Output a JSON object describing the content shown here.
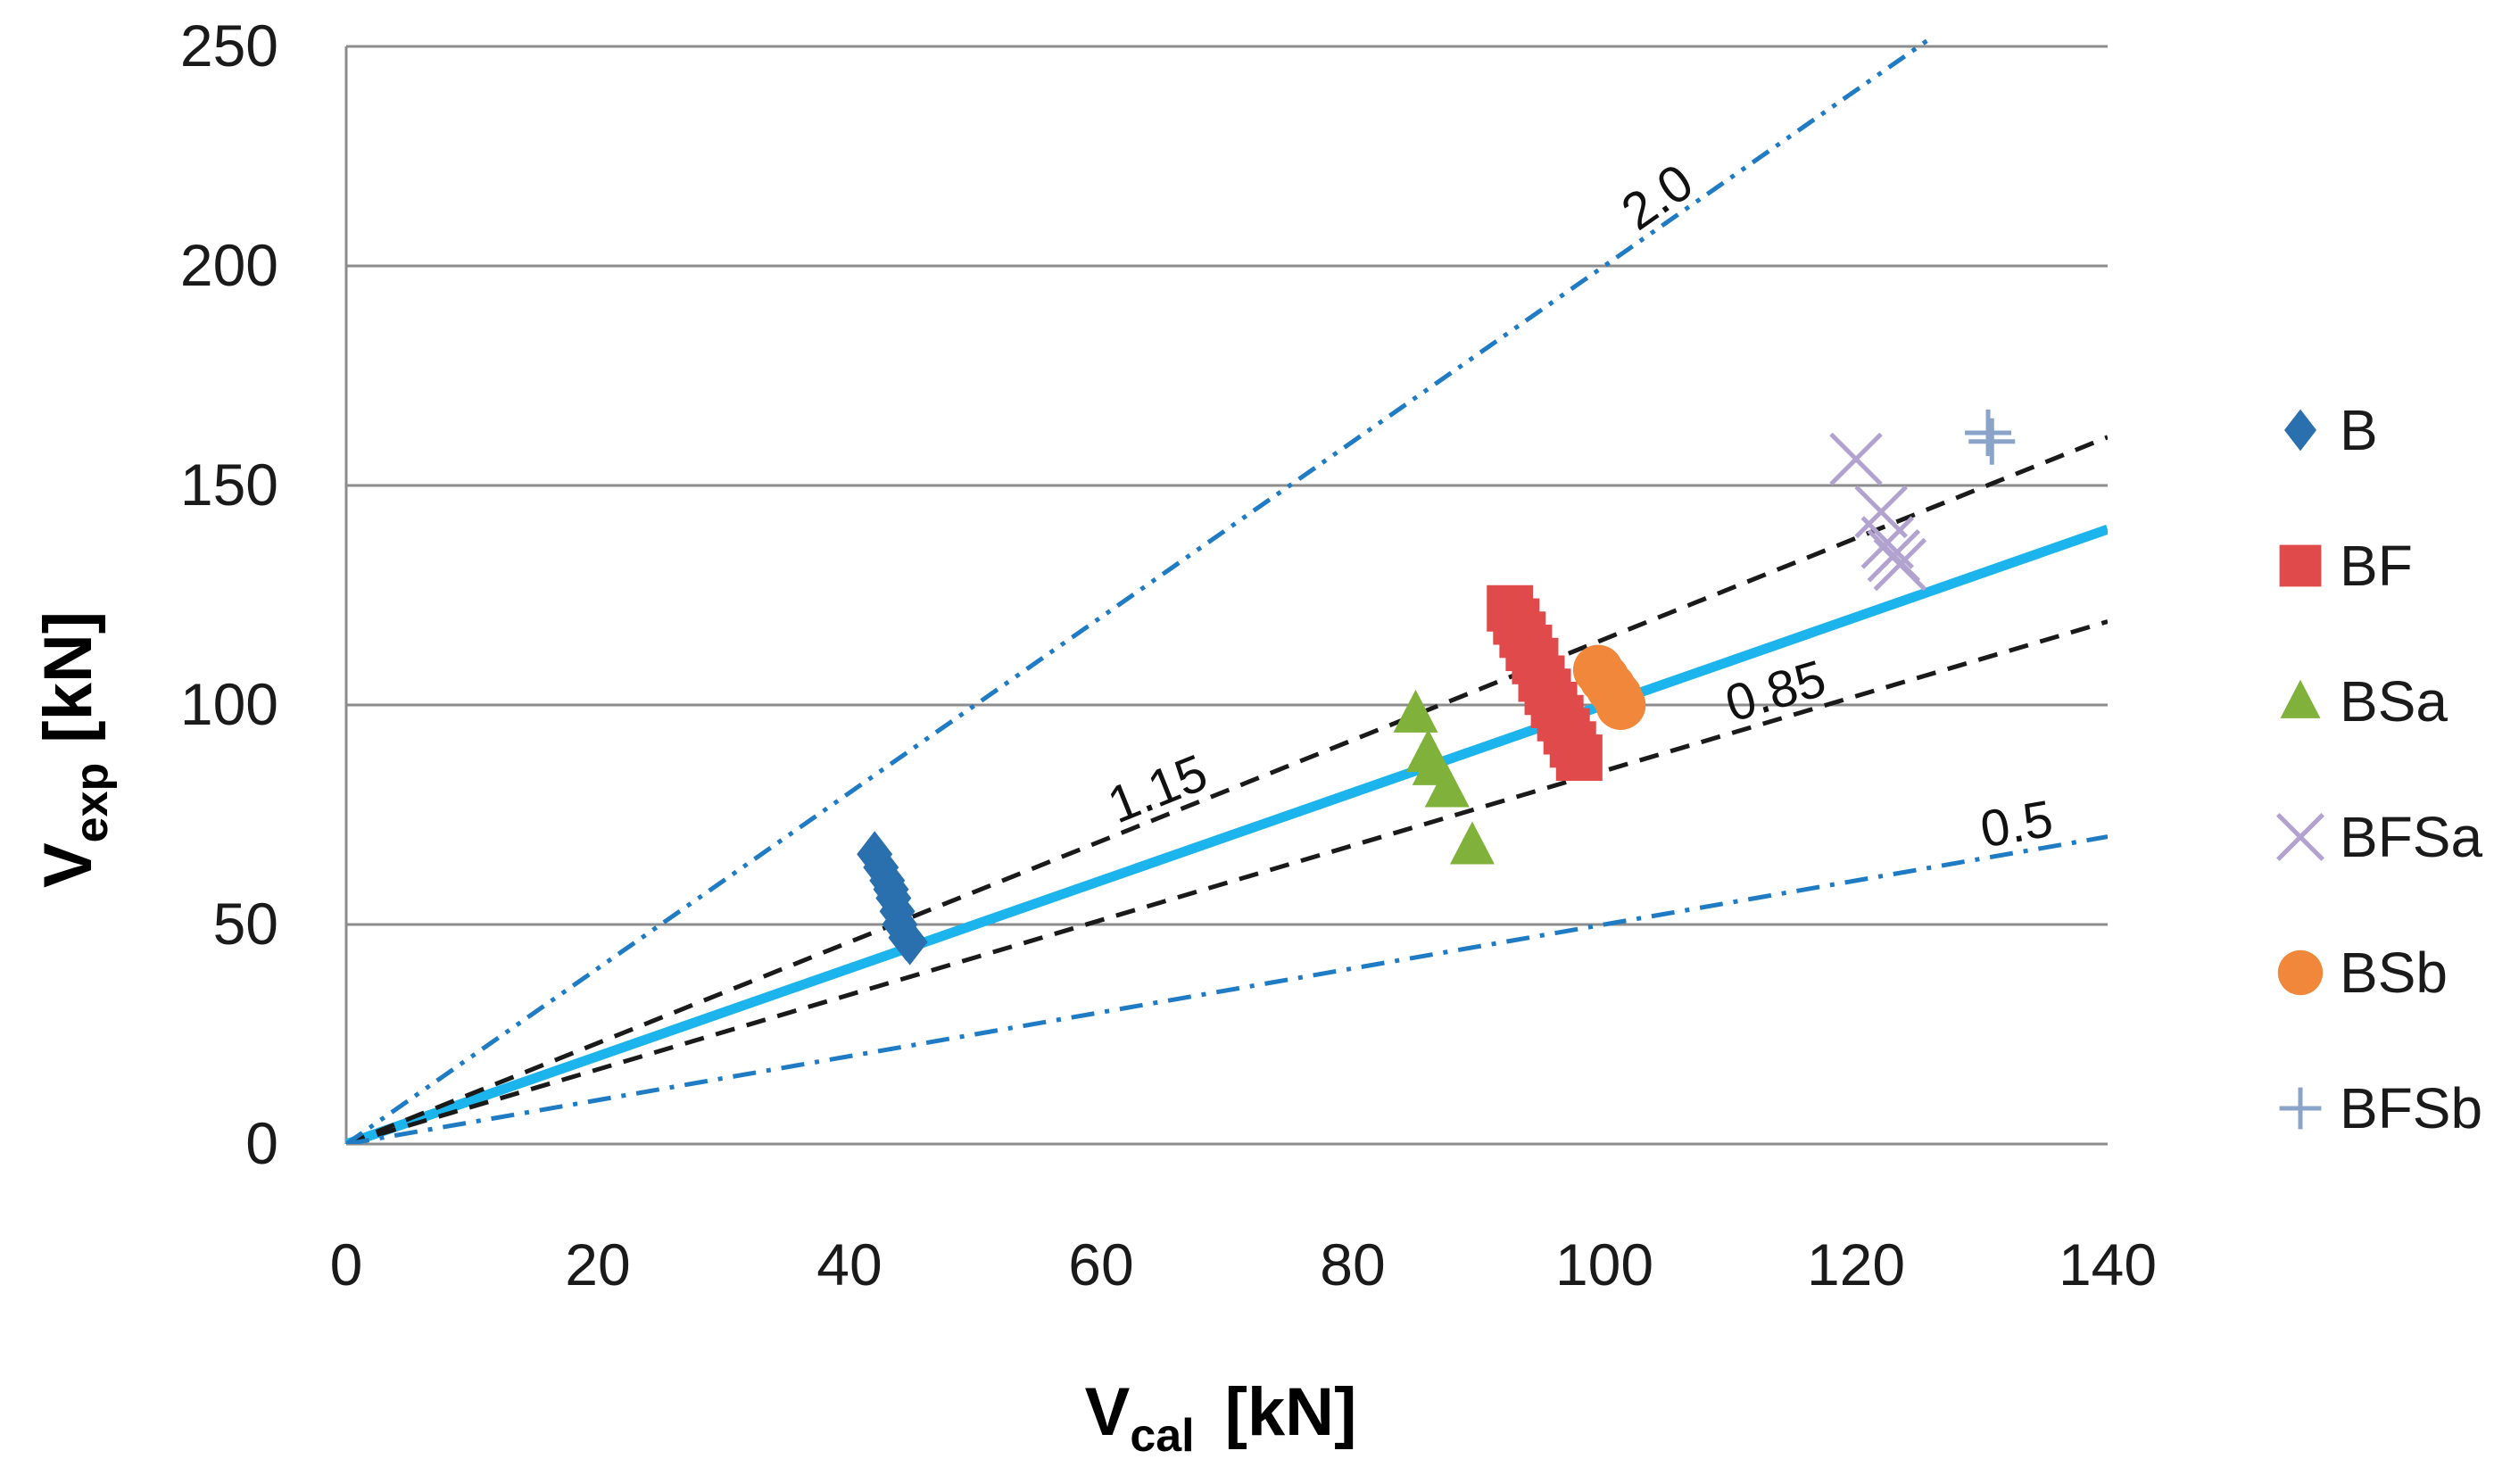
{
  "chart_data": {
    "type": "scatter",
    "title": "",
    "xlabel": {
      "main": "V",
      "sub": "cal",
      "unit": "[kN]"
    },
    "ylabel": {
      "main": "V",
      "sub": "exp",
      "unit": "[kN]"
    },
    "xlim": [
      0,
      140
    ],
    "ylim": [
      0,
      250
    ],
    "xticks": [
      0,
      20,
      40,
      60,
      80,
      100,
      120,
      140
    ],
    "yticks": [
      0,
      50,
      100,
      150,
      200,
      250
    ],
    "grid": "horizontal",
    "legend_position": "right",
    "reference_lines": [
      {
        "name": "unity",
        "slope": 1.0,
        "label": "",
        "style": "solid",
        "color": "#1cb4ec"
      },
      {
        "name": "upper-bound",
        "slope": 1.15,
        "label": "1.15",
        "style": "dashed",
        "color": "#1a1a1a",
        "label_at_x": 65
      },
      {
        "name": "lower-bound",
        "slope": 0.85,
        "label": "0.85",
        "style": "dashed",
        "color": "#1a1a1a",
        "label_at_x": 114
      },
      {
        "name": "double",
        "slope": 2.0,
        "label": "2.0",
        "style": "dash-dot-dot",
        "color": "#1f7bc4",
        "label_at_x": 105
      },
      {
        "name": "half",
        "slope": 0.5,
        "label": "0.5",
        "style": "dash-dot",
        "color": "#1f7bc4",
        "label_at_x": 133
      }
    ],
    "series": [
      {
        "name": "B",
        "marker": "diamond",
        "color": "#2a6fae",
        "points": [
          [
            42,
            66
          ],
          [
            42.5,
            63
          ],
          [
            43,
            60
          ],
          [
            43.3,
            58
          ],
          [
            43.5,
            56
          ],
          [
            43.8,
            53
          ],
          [
            44,
            50
          ],
          [
            44.5,
            47
          ],
          [
            44.8,
            46
          ]
        ]
      },
      {
        "name": "BF",
        "marker": "square",
        "color": "#e04a4a",
        "points": [
          [
            92.5,
            122
          ],
          [
            93,
            119
          ],
          [
            93.5,
            116
          ],
          [
            94,
            113
          ],
          [
            94.5,
            110
          ],
          [
            95,
            106
          ],
          [
            95.5,
            103
          ],
          [
            96,
            100
          ],
          [
            96.5,
            97
          ],
          [
            97,
            94
          ],
          [
            97.5,
            91
          ],
          [
            98,
            88
          ]
        ]
      },
      {
        "name": "BSa",
        "marker": "triangle",
        "color": "#7fb13b",
        "points": [
          [
            85,
            98
          ],
          [
            86,
            89
          ],
          [
            86.5,
            86
          ],
          [
            87.5,
            81
          ],
          [
            89.5,
            68
          ]
        ]
      },
      {
        "name": "BFSa",
        "marker": "x",
        "color": "#b2a2cf",
        "points": [
          [
            120,
            156
          ],
          [
            122,
            144
          ],
          [
            122.5,
            137
          ],
          [
            123,
            134
          ],
          [
            123.5,
            132
          ]
        ]
      },
      {
        "name": "BSb",
        "marker": "circle",
        "color": "#f0873a",
        "points": [
          [
            99.5,
            108
          ],
          [
            100,
            106
          ],
          [
            100.5,
            104
          ],
          [
            101,
            102
          ],
          [
            101.3,
            100
          ]
        ]
      },
      {
        "name": "BFSb",
        "marker": "plus",
        "color": "#8aa3c9",
        "points": [
          [
            130.5,
            162
          ],
          [
            130.8,
            160
          ]
        ]
      }
    ]
  }
}
